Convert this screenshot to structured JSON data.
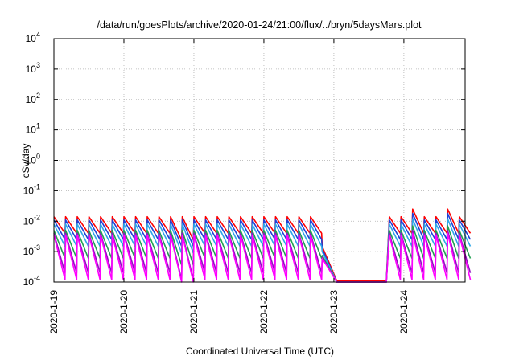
{
  "chart_data": {
    "type": "line",
    "title": "/data/run/goesPlots/archive/2020-01-24/21:00/flux/../bryn/5daysMars.plot",
    "xlabel": "Coordinated Universal Time (UTC)",
    "ylabel": "cSv/day",
    "yscale": "log",
    "ylim": [
      0.0001,
      10000
    ],
    "xlim": [
      "2020-01-19",
      "2020-01-24 21:00"
    ],
    "grid": true,
    "y_ticks": [
      {
        "base": "10",
        "exp": "-4"
      },
      {
        "base": "10",
        "exp": "-3"
      },
      {
        "base": "10",
        "exp": "-2"
      },
      {
        "base": "10",
        "exp": "-1"
      },
      {
        "base": "10",
        "exp": "0"
      },
      {
        "base": "10",
        "exp": "1"
      },
      {
        "base": "10",
        "exp": "2"
      },
      {
        "base": "10",
        "exp": "3"
      },
      {
        "base": "10",
        "exp": "4"
      }
    ],
    "x_ticks": [
      "2020-1-19",
      "2020-1-20",
      "2020-1-21",
      "2020-1-22",
      "2020-1-23",
      "2020-1-24"
    ],
    "sawtooth_period_hours": 4,
    "series": [
      {
        "color": "#ff0000",
        "hi": 0.014,
        "lo": 0.004,
        "gap_floor": 0.00011,
        "recover_hi": 0.025
      },
      {
        "color": "#1f3fd6",
        "hi": 0.011,
        "lo": 0.0025,
        "gap_floor": 0.0001,
        "recover_hi": 0.018
      },
      {
        "color": "#2fa8e8",
        "hi": 0.008,
        "lo": 0.0015,
        "gap_floor": 0.0001,
        "recover_hi": 0.012
      },
      {
        "color": "#20a050",
        "hi": 0.005,
        "lo": 0.0006,
        "gap_floor": 0.0001,
        "recover_hi": 0.007
      },
      {
        "color": "#9010c0",
        "hi": 0.004,
        "lo": 0.0002,
        "gap_floor": 0.0001,
        "recover_hi": 0.005
      },
      {
        "color": "#ff00ff",
        "hi": 0.0035,
        "lo": 0.00012,
        "gap_floor": 0.0001,
        "recover_hi": 0.004
      }
    ]
  }
}
